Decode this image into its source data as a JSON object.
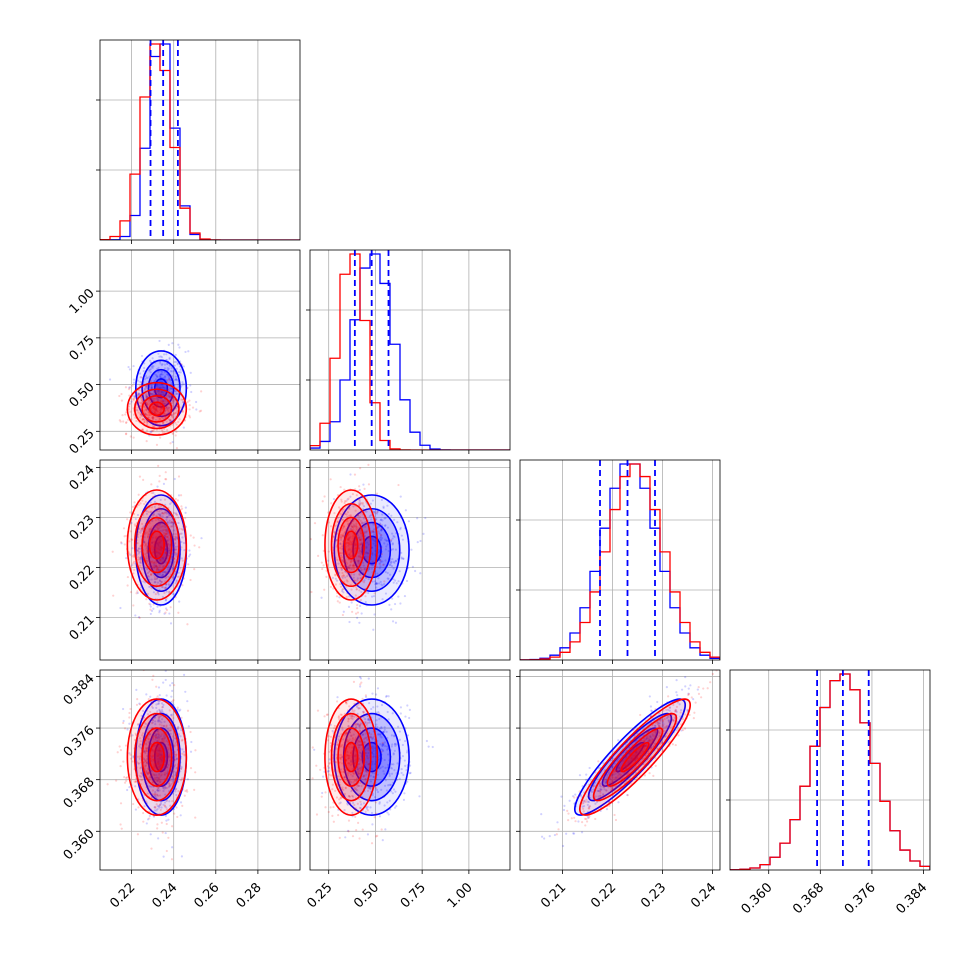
{
  "chart_data": {
    "type": "corner",
    "description_series": [
      {
        "color": "#0000ff"
      },
      {
        "color": "#ff0000"
      }
    ],
    "colors": {
      "blue": "#0000ff",
      "red": "#ff0000",
      "grid": "#b0b0b0"
    },
    "grid": true,
    "parameters": [
      {
        "range": [
          0.205,
          0.3
        ],
        "ticks": [
          0.22,
          0.24,
          0.26,
          0.28
        ],
        "tick_labels": [
          "0.22",
          "0.24",
          "0.26",
          "0.28"
        ],
        "blue": {
          "mean": 0.234,
          "q_low": 0.229,
          "q_high": 0.242,
          "sd": 0.006
        },
        "red": {
          "mean": 0.232,
          "q_low": 0.227,
          "q_high": 0.239,
          "sd": 0.007
        },
        "quantile_lines": [
          0.229,
          0.235,
          0.242
        ]
      },
      {
        "range": [
          0.15,
          1.22
        ],
        "ticks": [
          0.25,
          0.5,
          0.75,
          1.0
        ],
        "tick_labels": [
          "0.25",
          "0.50",
          "0.75",
          "1.00"
        ],
        "blue": {
          "mean": 0.48,
          "sd": 0.1
        },
        "red": {
          "mean": 0.37,
          "sd": 0.07
        },
        "quantile_lines": [
          0.39,
          0.48,
          0.57
        ]
      },
      {
        "range": [
          0.2015,
          0.2415
        ],
        "ticks": [
          0.21,
          0.22,
          0.23,
          0.24
        ],
        "tick_labels": [
          "0.21",
          "0.22",
          "0.23",
          "0.24"
        ],
        "blue": {
          "mean": 0.2235,
          "sd": 0.0055
        },
        "red": {
          "mean": 0.2245,
          "sd": 0.0055
        },
        "quantile_lines": [
          0.2175,
          0.223,
          0.2285
        ]
      },
      {
        "range": [
          0.354,
          0.385
        ],
        "ticks": [
          0.36,
          0.368,
          0.376,
          0.384
        ],
        "tick_labels": [
          "0.360",
          "0.368",
          "0.376",
          "0.384"
        ],
        "blue": {
          "mean": 0.3715,
          "sd": 0.0045
        },
        "red": {
          "mean": 0.3715,
          "sd": 0.0045
        },
        "quantile_lines": [
          0.3675,
          0.3715,
          0.3755
        ]
      }
    ]
  }
}
